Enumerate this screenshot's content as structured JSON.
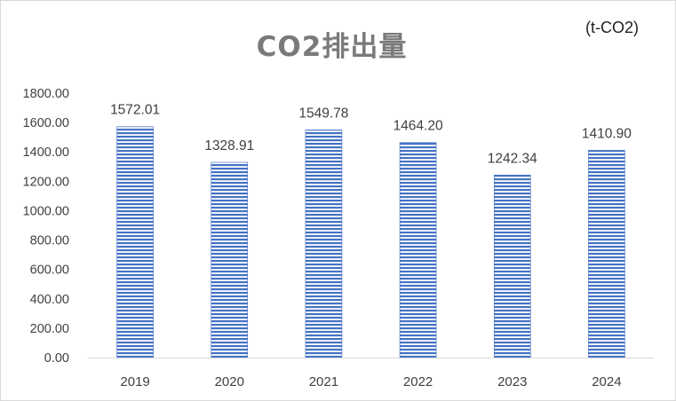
{
  "chart_data": {
    "type": "bar",
    "title": "CO2排出量",
    "unit": "(t-CO2)",
    "categories": [
      "2019",
      "2020",
      "2021",
      "2022",
      "2023",
      "2024"
    ],
    "values": [
      1572.01,
      1328.91,
      1549.78,
      1464.2,
      1242.34,
      1410.9
    ],
    "value_labels": [
      "1572.01",
      "1328.91",
      "1549.78",
      "1464.20",
      "1242.34",
      "1410.90"
    ],
    "yticks": [
      "0.00",
      "200.00",
      "400.00",
      "600.00",
      "800.00",
      "1000.00",
      "1200.00",
      "1400.00",
      "1600.00",
      "1800.00"
    ],
    "ylim": [
      0,
      1800
    ],
    "xlabel": "",
    "ylabel": "",
    "grid": false,
    "bar_color": "#4472c4",
    "bar_pattern": "horizontal-stripes"
  }
}
